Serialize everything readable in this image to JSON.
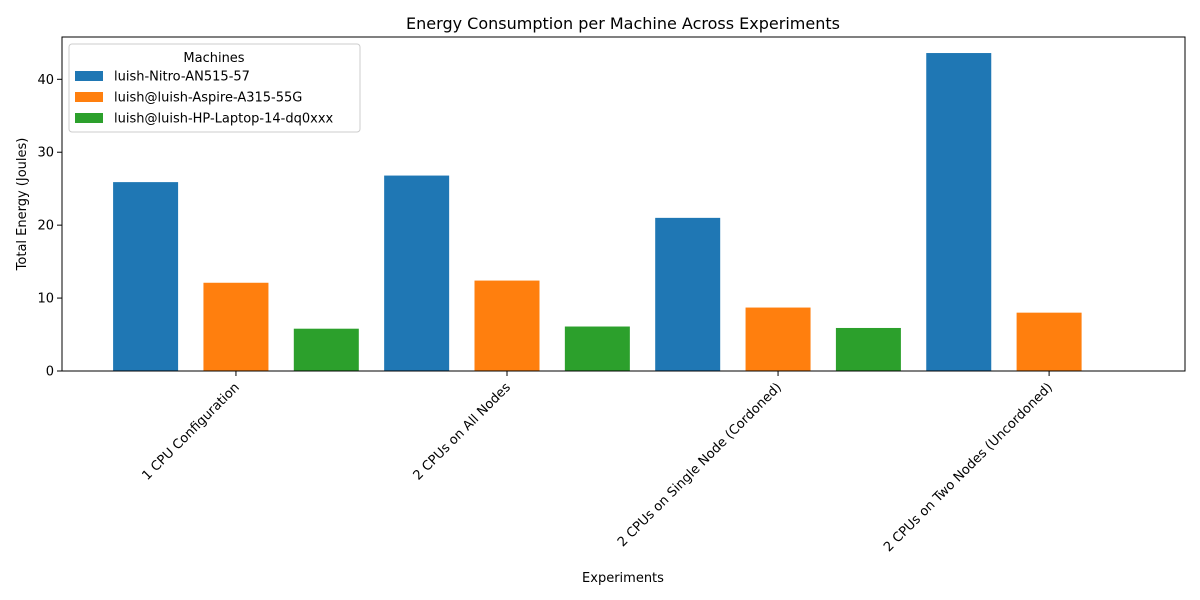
{
  "chart_data": {
    "type": "bar",
    "title": "Energy Consumption per Machine Across Experiments",
    "xlabel": "Experiments",
    "ylabel": "Total Energy (Joules)",
    "categories": [
      "1 CPU Configuration",
      "2 CPUs on All Nodes",
      "2 CPUs on Single Node (Cordoned)",
      "2 CPUs on Two Nodes (Uncordoned)"
    ],
    "series": [
      {
        "name": "luish-Nitro-AN515-57",
        "color": "#1f77b4",
        "values": [
          25.9,
          26.8,
          21.0,
          43.6
        ]
      },
      {
        "name": "luish@luish-Aspire-A315-55G",
        "color": "#ff7f0e",
        "values": [
          12.1,
          12.4,
          8.7,
          8.0
        ]
      },
      {
        "name": "luish@luish-HP-Laptop-14-dq0xxx",
        "color": "#2ca02c",
        "values": [
          5.8,
          6.1,
          5.9,
          null
        ]
      }
    ],
    "ylim": [
      0,
      45.8
    ],
    "yticks": [
      0,
      10,
      20,
      30,
      40
    ],
    "legend": {
      "title": "Machines",
      "placement": "top-left"
    },
    "grid": false
  }
}
